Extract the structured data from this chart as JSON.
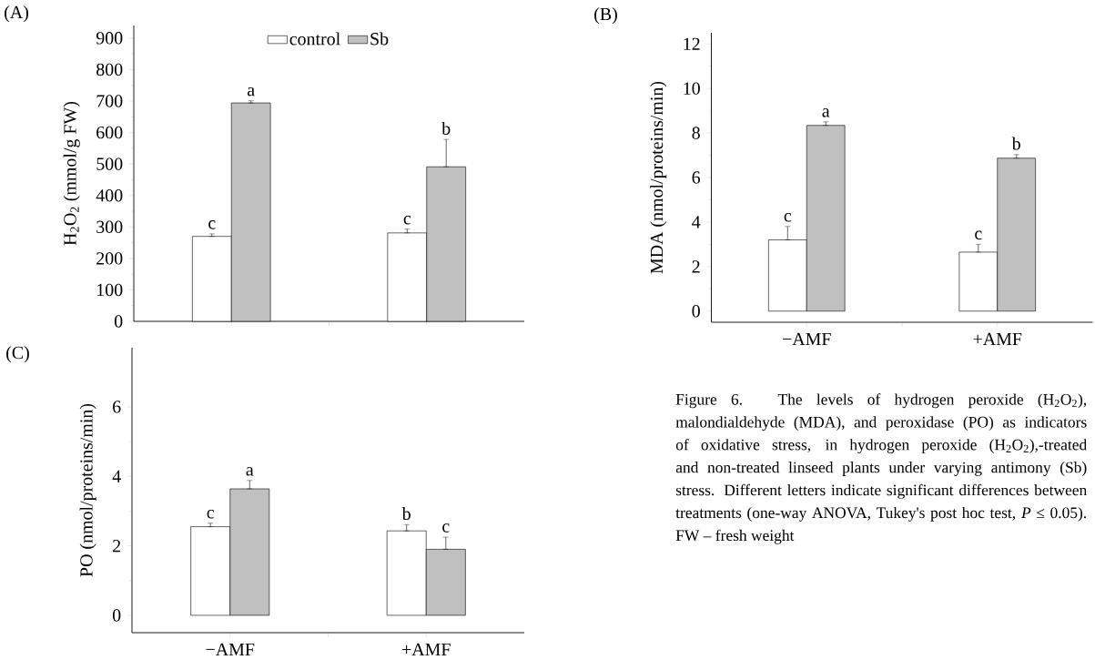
{
  "chart_data": [
    {
      "type": "bar",
      "title": "(A)",
      "ylabel": "H$_{2}$O$_{2}$ (mmol/g FW)",
      "categories": [
        null,
        null
      ],
      "legend": "top",
      "series": [
        {
          "name": "control",
          "color": "#ffffff",
          "values": [
            270,
            281
          ],
          "errors": [
            [
              270,
              278
            ],
            [
              281,
              293
            ]
          ],
          "value_labels": [
            "c",
            "c"
          ]
        },
        {
          "name": "Sb",
          "color": "#c0c0c0",
          "values": [
            694,
            491
          ],
          "errors": [
            [
              694,
              701
            ],
            [
              491,
              578
            ]
          ],
          "value_labels": [
            "a",
            "b"
          ]
        }
      ],
      "ylim": [
        0,
        940
      ],
      "yticks": [
        0,
        100,
        200,
        300,
        400,
        500,
        600,
        700,
        800,
        900
      ]
    },
    {
      "type": "bar",
      "title": "(B)",
      "ylabel": "MDA (nmol/proteins/min)",
      "categories": [
        "−AMF",
        "+AMF"
      ],
      "series": [
        {
          "color": "#ffffff",
          "values": [
            3.2,
            2.65
          ],
          "errors": [
            [
              3.2,
              3.8
            ],
            [
              2.65,
              3.0
            ]
          ],
          "value_labels": [
            "c",
            "c"
          ]
        },
        {
          "color": "#c0c0c0",
          "values": [
            8.34,
            6.87
          ],
          "errors": [
            [
              8.34,
              8.5
            ],
            [
              6.87,
              7.03
            ]
          ],
          "value_labels": [
            "a",
            "b"
          ]
        }
      ],
      "ylim": [
        -0.5,
        12.5
      ],
      "yticks": [
        0,
        2,
        4,
        6,
        8,
        10,
        12
      ]
    },
    {
      "type": "bar",
      "title": "(C)",
      "ylabel": "PO (nmol/proteins/min)",
      "categories": [
        "−AMF",
        "+AMF"
      ],
      "series": [
        {
          "color": "#ffffff",
          "values": [
            2.55,
            2.43
          ],
          "errors": [
            [
              2.55,
              2.65
            ],
            [
              2.43,
              2.61
            ]
          ],
          "value_labels": [
            "c",
            "b"
          ]
        },
        {
          "color": "#c0c0c0",
          "values": [
            3.64,
            1.9
          ],
          "errors": [
            [
              3.64,
              3.88
            ],
            [
              1.9,
              2.25
            ]
          ],
          "value_labels": [
            "a",
            "c"
          ]
        }
      ],
      "ylim": [
        -0.5,
        7.7
      ],
      "yticks": [
        0,
        2,
        4,
        6
      ],
      "annotations": [
        "Figure 6. The levels of hydrogen peroxide (H$_{2}$O$_{2}$), malondialdehyde (MDA), and peroxidase (PO) as indicators of oxidative stress, in hydrogen peroxide (H$_{2}$O$_{2}$),-treated and non-treated linseed plants under varying antimony (Sb) stress. Different letters indicate significant differences between treatments (one-way ANOVA, Tukey's post hoc test, *P* ≤ 0.05). FW – fresh weight"
      ]
    }
  ]
}
